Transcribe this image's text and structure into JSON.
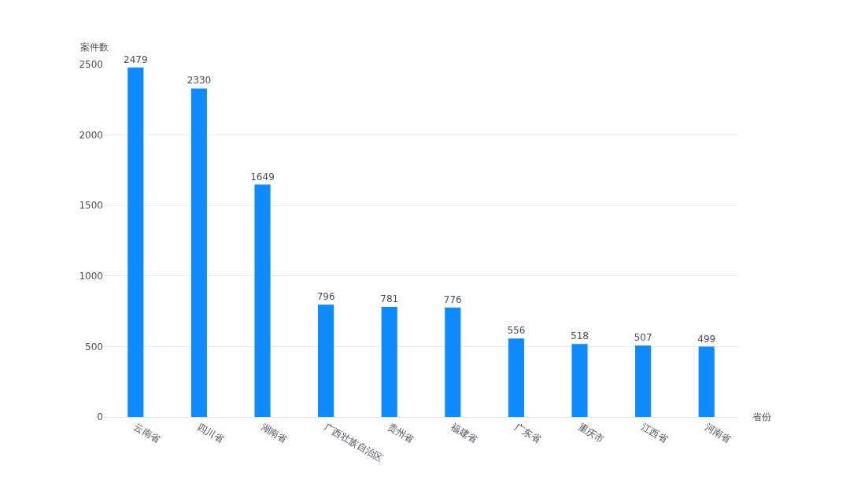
{
  "chart_data": {
    "type": "bar",
    "xlabel": "省份",
    "ylabel": "案件数",
    "categories": [
      "云南省",
      "四川省",
      "湖南省",
      "广西壮族自治区",
      "贵州省",
      "福建省",
      "广东省",
      "重庆市",
      "江西省",
      "河南省"
    ],
    "values": [
      2479,
      2330,
      1649,
      796,
      781,
      776,
      556,
      518,
      507,
      499
    ],
    "color": "#0d8bff",
    "ylim": [
      0,
      2500
    ],
    "yticks": [
      0,
      500,
      1000,
      1500,
      2000,
      2500
    ],
    "grid": "y",
    "data_labels": true,
    "legend": false
  }
}
